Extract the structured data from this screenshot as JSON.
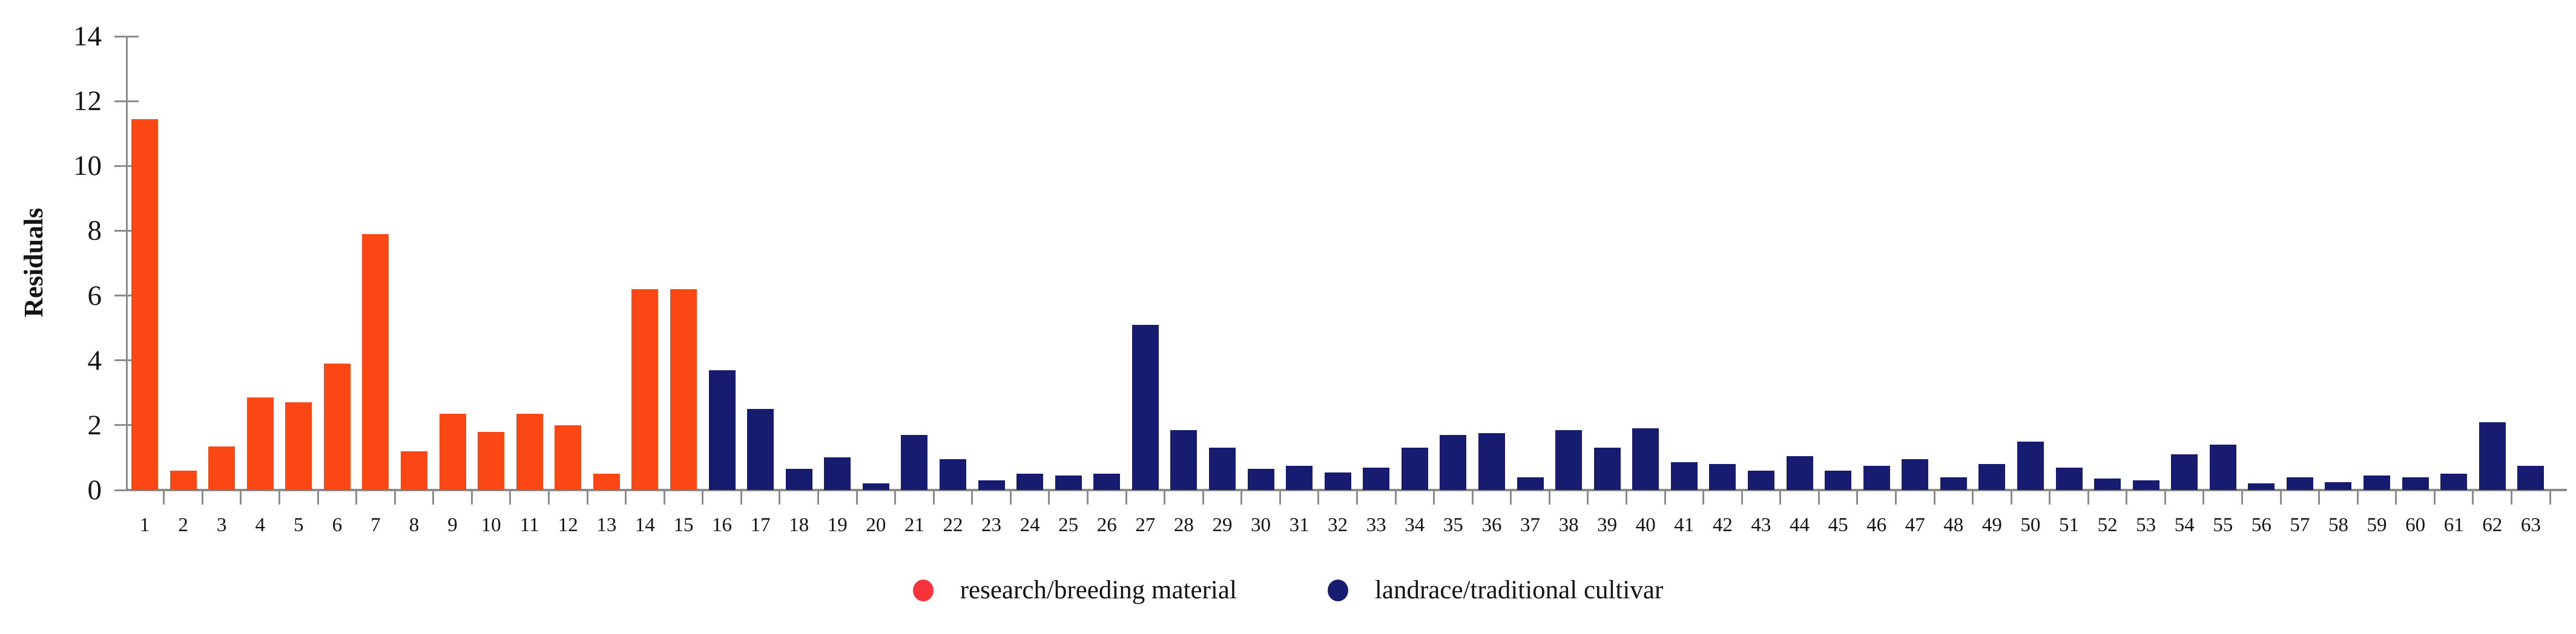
{
  "chart_data": {
    "type": "bar",
    "title": "",
    "xlabel": "",
    "ylabel": "Residuals",
    "ylim": [
      0,
      14
    ],
    "yticks": [
      0,
      2,
      4,
      6,
      8,
      10,
      12,
      14
    ],
    "grid": false,
    "legend_position": "bottom-center",
    "categories": [
      "1",
      "2",
      "3",
      "4",
      "5",
      "6",
      "7",
      "8",
      "9",
      "10",
      "11",
      "12",
      "13",
      "14",
      "15",
      "16",
      "17",
      "18",
      "19",
      "20",
      "21",
      "22",
      "23",
      "24",
      "25",
      "26",
      "27",
      "28",
      "29",
      "30",
      "31",
      "32",
      "33",
      "34",
      "35",
      "36",
      "37",
      "38",
      "39",
      "40",
      "41",
      "42",
      "43",
      "44",
      "45",
      "46",
      "47",
      "48",
      "49",
      "50",
      "51",
      "52",
      "53",
      "54",
      "55",
      "56",
      "57",
      "58",
      "59",
      "60",
      "61",
      "62",
      "63"
    ],
    "values": [
      11.45,
      0.6,
      1.35,
      2.85,
      2.7,
      3.9,
      7.9,
      1.2,
      2.35,
      1.8,
      2.35,
      2.0,
      0.5,
      6.2,
      6.2,
      3.7,
      2.5,
      0.65,
      1.0,
      0.2,
      1.7,
      0.95,
      0.3,
      0.5,
      0.45,
      0.5,
      5.1,
      1.85,
      1.3,
      0.65,
      0.75,
      0.55,
      0.7,
      1.3,
      1.7,
      1.75,
      0.4,
      1.85,
      1.3,
      1.9,
      0.85,
      0.8,
      0.6,
      1.05,
      0.6,
      0.75,
      0.95,
      0.4,
      0.8,
      1.5,
      0.7,
      0.35,
      0.3,
      1.1,
      1.4,
      0.2,
      0.4,
      0.25,
      0.45,
      0.4,
      0.5,
      2.1,
      0.75
    ],
    "series": [
      {
        "name": "research/breeding material",
        "bar_color": "#fb4713",
        "from_category": "1",
        "to_category": "15"
      },
      {
        "name": "landrace/traditional cultivar",
        "bar_color": "#171c70",
        "from_category": "16",
        "to_category": "63"
      }
    ],
    "legend": [
      {
        "label": "research/breeding material",
        "marker_color": "#f8333c"
      },
      {
        "label": "landrace/traditional cultivar",
        "marker_color": "#171c70"
      }
    ],
    "colors": {
      "axis": "#8c8c8c",
      "text": "#141414",
      "background": "#ffffff"
    }
  }
}
